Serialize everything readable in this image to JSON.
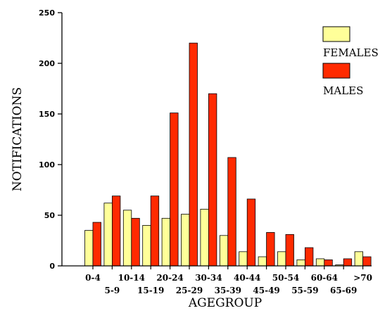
{
  "chart_data": {
    "type": "bar",
    "title": "",
    "xlabel": "AGEGROUP",
    "ylabel": "NOTIFICATIONS",
    "ylim": [
      0,
      250
    ],
    "yticks": [
      0,
      50,
      100,
      150,
      200,
      250
    ],
    "categories": [
      "0-4",
      "5-9",
      "10-14",
      "15-19",
      "20-24",
      "25-29",
      "30-34",
      "35-39",
      "40-44",
      "45-49",
      "50-54",
      "55-59",
      "60-64",
      "65-69",
      ">70"
    ],
    "series": [
      {
        "name": "FEMALES",
        "color": "#ffff99",
        "values": [
          35,
          62,
          55,
          40,
          47,
          51,
          56,
          30,
          14,
          9,
          14,
          6,
          7,
          1,
          14
        ]
      },
      {
        "name": "MALES",
        "color": "#ff2a00",
        "values": [
          43,
          69,
          47,
          69,
          151,
          220,
          170,
          107,
          66,
          33,
          31,
          18,
          6,
          7,
          9
        ]
      }
    ],
    "legend_position": "top-right",
    "grid": false
  }
}
